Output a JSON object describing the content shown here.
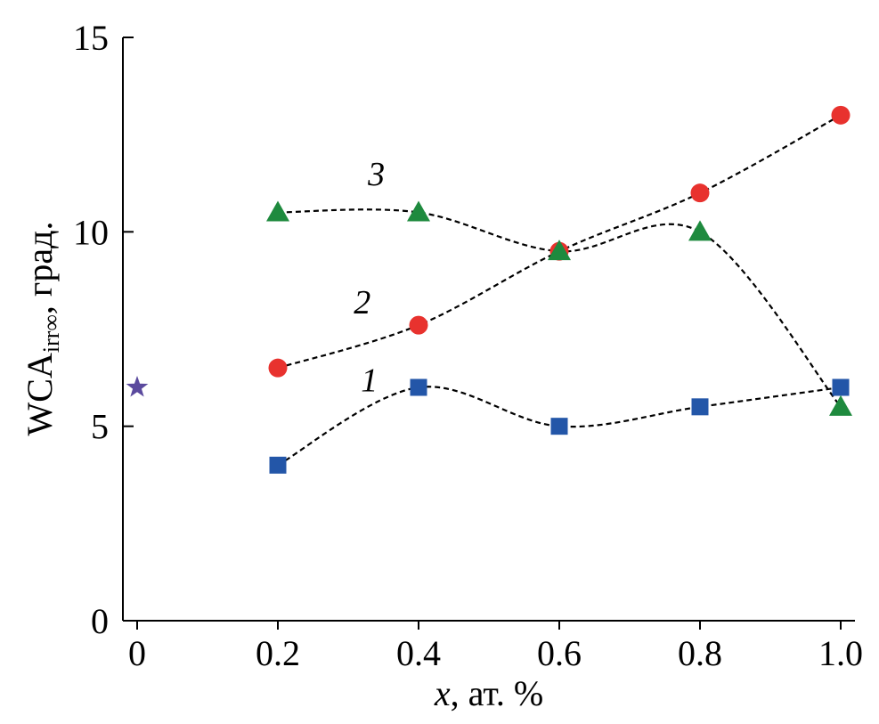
{
  "chart_data": {
    "type": "scatter",
    "title": "",
    "xlabel_italic": "x",
    "xlabel_rest": ", ат. %",
    "ylabel_main": "WCA",
    "ylabel_sub": "irr∞",
    "ylabel_rest": ", град.",
    "xlim": [
      0,
      1.0
    ],
    "ylim": [
      0,
      15
    ],
    "x_ticks": [
      0,
      0.2,
      0.4,
      0.6,
      0.8,
      1.0
    ],
    "x_tick_labels": [
      "0",
      "0.2",
      "0.4",
      "0.6",
      "0.8",
      "1.0"
    ],
    "y_ticks": [
      0,
      5,
      10,
      15
    ],
    "y_tick_labels": [
      "0",
      "5",
      "10",
      "15"
    ],
    "reference_point": {
      "x": 0,
      "y": 6.0,
      "marker": "star",
      "color": "#5b4a9e"
    },
    "series": [
      {
        "name": "1",
        "marker": "square",
        "color": "#2356a8",
        "x": [
          0.2,
          0.4,
          0.6,
          0.8,
          1.0
        ],
        "y": [
          4.0,
          6.0,
          5.0,
          5.5,
          6.0
        ]
      },
      {
        "name": "2",
        "marker": "circle",
        "color": "#e8322e",
        "x": [
          0.2,
          0.4,
          0.6,
          0.8,
          1.0
        ],
        "y": [
          6.5,
          7.6,
          9.5,
          11.0,
          13.0
        ]
      },
      {
        "name": "3",
        "marker": "triangle",
        "color": "#1e8a3e",
        "x": [
          0.2,
          0.4,
          0.6,
          0.8,
          1.0
        ],
        "y": [
          10.5,
          10.5,
          9.5,
          10.0,
          5.5
        ]
      }
    ],
    "series_label_positions": [
      {
        "name": "1",
        "x": 0.33,
        "y": 5.9
      },
      {
        "name": "2",
        "x": 0.32,
        "y": 7.9
      },
      {
        "name": "3",
        "x": 0.34,
        "y": 11.2
      }
    ]
  }
}
